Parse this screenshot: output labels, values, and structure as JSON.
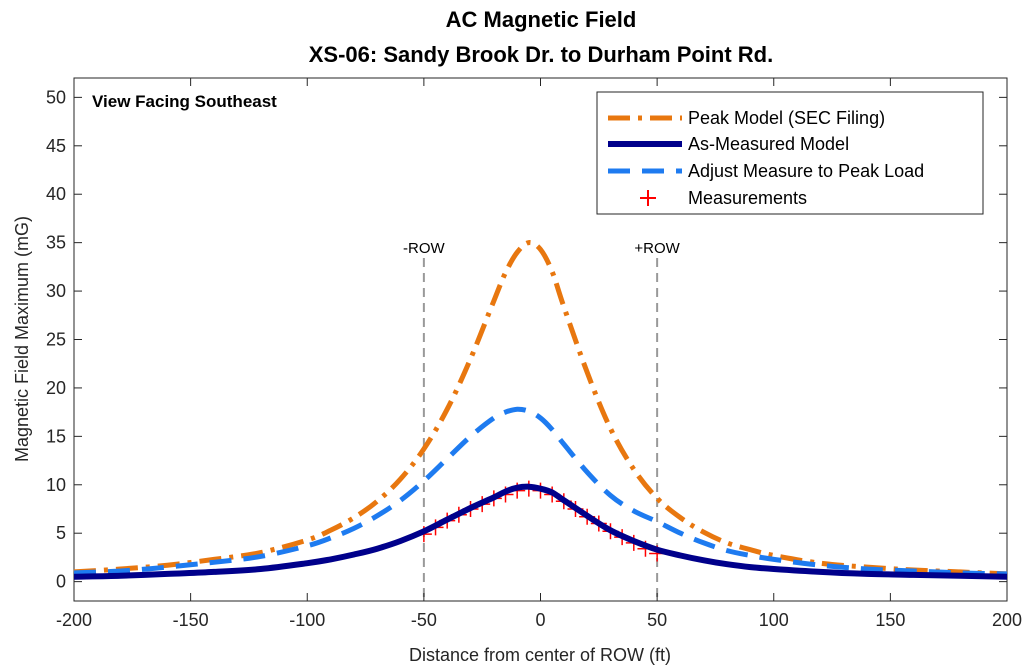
{
  "chart_data": {
    "type": "line",
    "title": "AC Magnetic Field",
    "subtitle": "XS-06: Sandy Brook Dr. to Durham Point Rd.",
    "xlabel": "Distance from center of ROW (ft)",
    "ylabel": "Magnetic Field Maximum (mG)",
    "xlim": [
      -200,
      200
    ],
    "ylim": [
      -2,
      52
    ],
    "xticks": [
      -200,
      -150,
      -100,
      -50,
      0,
      50,
      100,
      150,
      200
    ],
    "yticks": [
      0,
      5,
      10,
      15,
      20,
      25,
      30,
      35,
      40,
      45,
      50
    ],
    "grid": false,
    "legend_position": "top-right",
    "annotation": "View Facing Southeast",
    "row_markers": [
      {
        "label": "-ROW",
        "x": -50
      },
      {
        "label": "+ROW",
        "x": 50
      }
    ],
    "series": [
      {
        "name": "Peak Model (SEC Filing)",
        "style": "dash-dot",
        "color": "#E8770F",
        "x": [
          -200,
          -180,
          -160,
          -140,
          -120,
          -100,
          -90,
          -80,
          -70,
          -60,
          -50,
          -40,
          -30,
          -20,
          -15,
          -10,
          -5,
          0,
          5,
          10,
          20,
          30,
          40,
          50,
          60,
          70,
          80,
          90,
          100,
          120,
          140,
          160,
          180,
          200
        ],
        "values": [
          1.0,
          1.3,
          1.7,
          2.3,
          3.0,
          4.3,
          5.3,
          6.6,
          8.3,
          10.6,
          13.7,
          17.8,
          23.0,
          29.0,
          31.9,
          34.0,
          35.0,
          34.3,
          32.0,
          28.4,
          21.6,
          15.8,
          11.6,
          8.6,
          6.6,
          5.1,
          4.0,
          3.3,
          2.7,
          1.9,
          1.5,
          1.2,
          1.0,
          0.8
        ]
      },
      {
        "name": "As-Measured Model",
        "style": "solid",
        "color": "#00008B",
        "x": [
          -200,
          -180,
          -160,
          -140,
          -120,
          -100,
          -90,
          -80,
          -70,
          -60,
          -50,
          -40,
          -30,
          -20,
          -15,
          -10,
          -5,
          0,
          5,
          10,
          20,
          30,
          40,
          50,
          60,
          70,
          80,
          90,
          100,
          120,
          140,
          160,
          180,
          200
        ],
        "values": [
          0.5,
          0.6,
          0.8,
          1.0,
          1.3,
          1.9,
          2.3,
          2.8,
          3.4,
          4.2,
          5.2,
          6.4,
          7.6,
          8.7,
          9.3,
          9.7,
          9.8,
          9.6,
          9.2,
          8.4,
          6.8,
          5.3,
          4.2,
          3.3,
          2.7,
          2.2,
          1.8,
          1.5,
          1.3,
          1.0,
          0.8,
          0.7,
          0.6,
          0.5
        ]
      },
      {
        "name": "Adjust Measure to Peak Load",
        "style": "dashed",
        "color": "#1E7BF0",
        "x": [
          -200,
          -180,
          -160,
          -140,
          -120,
          -100,
          -90,
          -80,
          -70,
          -60,
          -50,
          -40,
          -30,
          -20,
          -15,
          -10,
          -5,
          0,
          5,
          10,
          20,
          30,
          40,
          50,
          60,
          70,
          80,
          90,
          100,
          120,
          140,
          160,
          180,
          200
        ],
        "values": [
          0.9,
          1.1,
          1.5,
          2.0,
          2.6,
          3.7,
          4.5,
          5.5,
          6.8,
          8.4,
          10.4,
          12.7,
          15.0,
          16.9,
          17.5,
          17.8,
          17.6,
          16.9,
          15.7,
          14.2,
          11.3,
          8.9,
          7.3,
          6.2,
          5.0,
          4.0,
          3.2,
          2.7,
          2.3,
          1.7,
          1.3,
          1.1,
          0.9,
          0.8
        ]
      },
      {
        "name": "Measurements",
        "style": "markers",
        "color": "#FF0000",
        "x": [
          -50,
          -45,
          -40,
          -35,
          -30,
          -25,
          -20,
          -15,
          -10,
          -5,
          0,
          5,
          10,
          15,
          20,
          25,
          30,
          35,
          40,
          45,
          50
        ],
        "values": [
          4.9,
          5.6,
          6.3,
          6.9,
          7.5,
          8.0,
          8.6,
          9.0,
          9.4,
          9.6,
          9.4,
          9.0,
          8.3,
          7.5,
          6.7,
          6.0,
          5.2,
          4.6,
          4.0,
          3.4,
          2.9
        ]
      }
    ]
  }
}
